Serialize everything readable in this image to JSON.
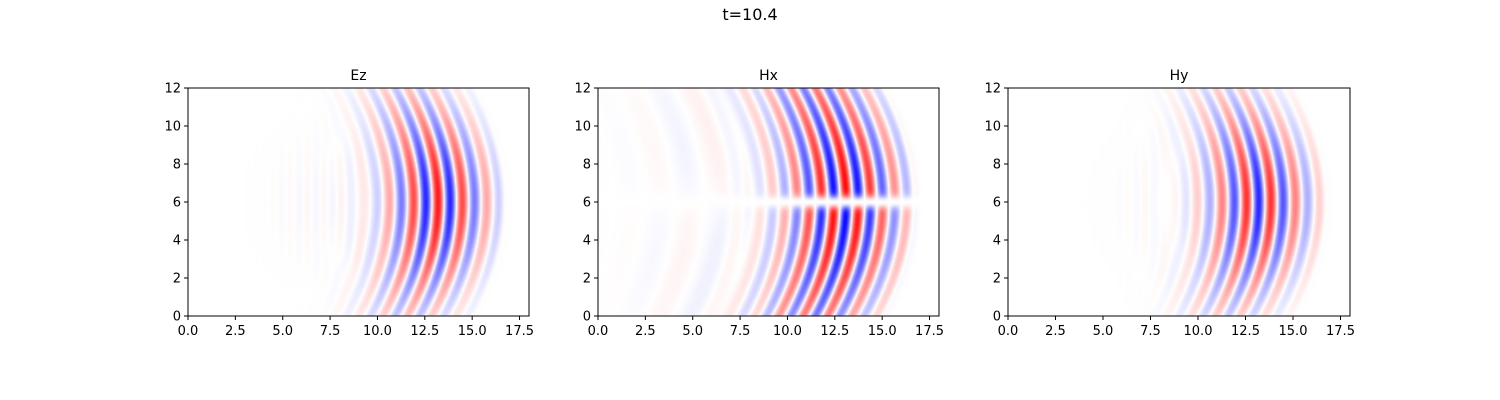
{
  "figure": {
    "suptitle": "t=10.4"
  },
  "colormap": {
    "negative": "#0000ff",
    "zero": "#ffffff",
    "positive": "#ff0000"
  },
  "chart_data": [
    {
      "type": "heatmap",
      "title": "Ez",
      "xlabel": "",
      "ylabel": "",
      "xlim": [
        0,
        18
      ],
      "ylim": [
        0,
        12
      ],
      "xticks": [
        "0.0",
        "2.5",
        "5.0",
        "7.5",
        "10.0",
        "12.5",
        "15.0",
        "17.5"
      ],
      "yticks": [
        "0",
        "2",
        "4",
        "6",
        "8",
        "10",
        "12"
      ],
      "colormap": "bwr",
      "field": {
        "pattern": "ez",
        "wavefront_x": 15.8,
        "x_center": 13.2,
        "x_width": 2.6,
        "y_center": 6,
        "wavelength": 1.3,
        "peak_amplitude": 0.9
      }
    },
    {
      "type": "heatmap",
      "title": "Hx",
      "xlabel": "",
      "ylabel": "",
      "xlim": [
        0,
        18
      ],
      "ylim": [
        0,
        12
      ],
      "xticks": [
        "0.0",
        "2.5",
        "5.0",
        "7.5",
        "10.0",
        "12.5",
        "15.0",
        "17.5"
      ],
      "yticks": [
        "0",
        "2",
        "4",
        "6",
        "8",
        "10",
        "12"
      ],
      "colormap": "bwr",
      "field": {
        "pattern": "hx",
        "wavefront_x": 15.8,
        "x_center": 13.0,
        "x_width": 3.0,
        "y_center": 6,
        "wavelength": 1.3,
        "peak_amplitude": 0.85
      }
    },
    {
      "type": "heatmap",
      "title": "Hy",
      "xlabel": "",
      "ylabel": "",
      "xlim": [
        0,
        18
      ],
      "ylim": [
        0,
        12
      ],
      "xticks": [
        "0.0",
        "2.5",
        "5.0",
        "7.5",
        "10.0",
        "12.5",
        "15.0",
        "17.5"
      ],
      "yticks": [
        "0",
        "2",
        "4",
        "6",
        "8",
        "10",
        "12"
      ],
      "colormap": "bwr",
      "field": {
        "pattern": "hy",
        "wavefront_x": 15.8,
        "x_center": 13.2,
        "x_width": 2.6,
        "y_center": 6,
        "wavelength": 1.3,
        "peak_amplitude": 0.85
      }
    }
  ]
}
